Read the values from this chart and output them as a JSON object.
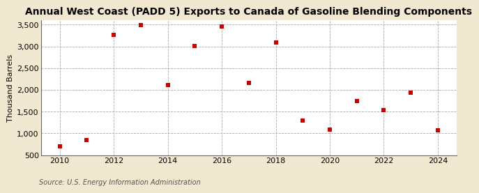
{
  "title": "Annual West Coast (PADD 5) Exports to Canada of Gasoline Blending Components",
  "ylabel": "Thousand Barrels",
  "source": "Source: U.S. Energy Information Administration",
  "figure_bg": "#f0e8d0",
  "axes_bg": "#ffffff",
  "years": [
    2010,
    2011,
    2012,
    2013,
    2014,
    2015,
    2016,
    2017,
    2018,
    2019,
    2020,
    2021,
    2022,
    2023,
    2024
  ],
  "values": [
    700,
    840,
    3270,
    3490,
    2110,
    3010,
    3450,
    2160,
    3090,
    1290,
    1090,
    1740,
    1540,
    1940,
    1070
  ],
  "marker_color": "#cc0000",
  "marker_size": 5,
  "ylim": [
    500,
    3600
  ],
  "yticks": [
    500,
    1000,
    1500,
    2000,
    2500,
    3000,
    3500
  ],
  "xticks": [
    2010,
    2012,
    2014,
    2016,
    2018,
    2020,
    2022,
    2024
  ],
  "xlim": [
    2009.3,
    2024.7
  ],
  "title_fontsize": 10,
  "label_fontsize": 8,
  "tick_fontsize": 8,
  "source_fontsize": 7
}
